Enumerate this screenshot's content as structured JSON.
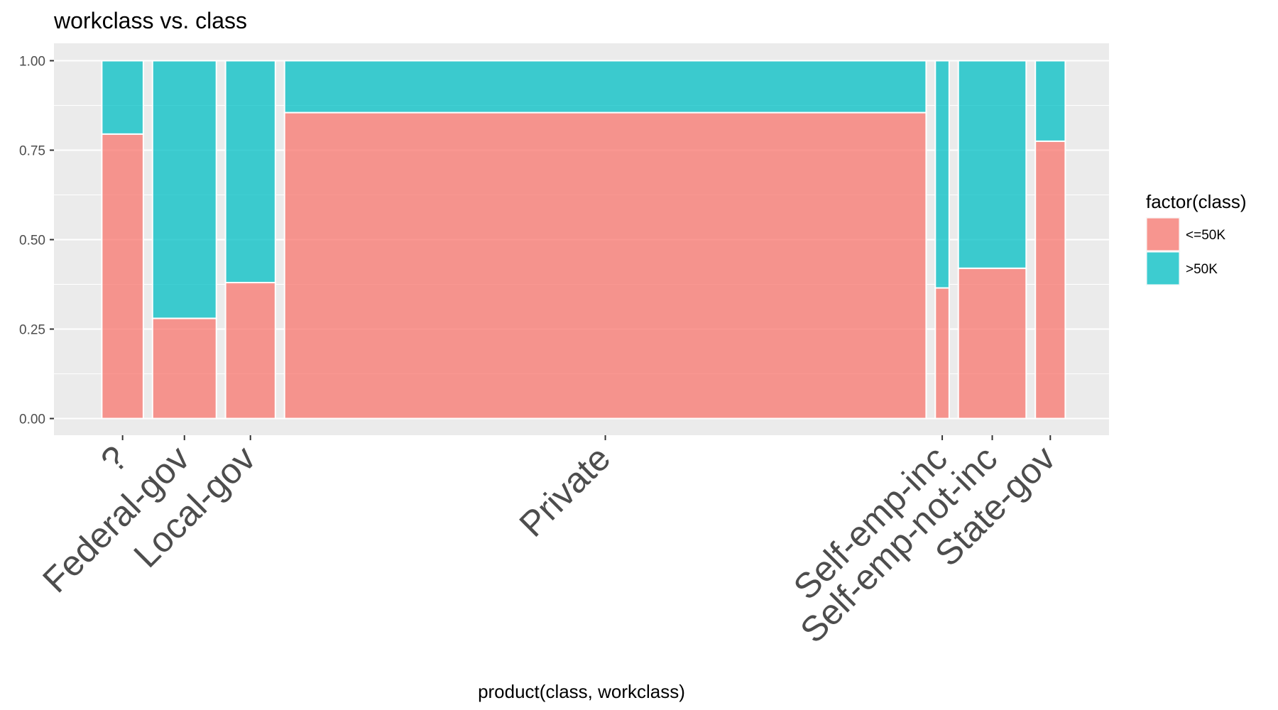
{
  "chart_data": {
    "type": "mosaic",
    "title": "workclass vs. class",
    "xlabel": "product(class, workclass)",
    "ylabel": "",
    "ylim": [
      0,
      1
    ],
    "yticks": [
      "0.00",
      "0.25",
      "0.50",
      "0.75",
      "1.00"
    ],
    "yticks_values": [
      0,
      0.25,
      0.5,
      0.75,
      1.0
    ],
    "categories": [
      "?",
      "Federal-gov",
      "Local-gov",
      "Private",
      "Self-emp-inc",
      "Self-emp-not-inc",
      "State-gov"
    ],
    "category_share": [
      0.0434,
      0.0667,
      0.0521,
      0.6704,
      0.0145,
      0.0709,
      0.0313
    ],
    "series": [
      {
        "name": "<=50K",
        "color": "#F8766D",
        "values": [
          0.795,
          0.28,
          0.38,
          0.855,
          0.365,
          0.42,
          0.775
        ]
      },
      {
        "name": ">50K",
        "color": "#00BFC4",
        "values": [
          0.205,
          0.72,
          0.62,
          0.145,
          0.635,
          0.58,
          0.225
        ]
      }
    ],
    "legend": {
      "title": "factor(class)",
      "position": "right"
    },
    "grid": true,
    "panel_background": "#EBEBEB"
  }
}
